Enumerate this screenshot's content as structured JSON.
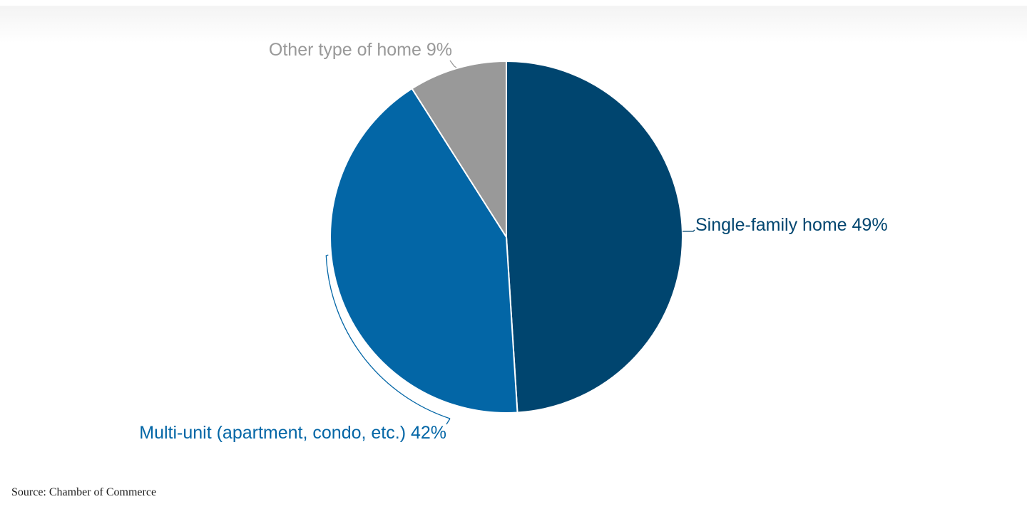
{
  "chart_data": {
    "type": "pie",
    "title": "",
    "slices": [
      {
        "label": "Single-family home 49%",
        "category": "Single-family home",
        "value": 49,
        "color": "#00456f"
      },
      {
        "label": "Multi-unit (apartment, condo, etc.) 42%",
        "category": "Multi-unit (apartment, condo, etc.)",
        "value": 42,
        "color": "#0366a6"
      },
      {
        "label": "Other type of home 9%",
        "category": "Other type of home",
        "value": 9,
        "color": "#999999"
      }
    ],
    "start_angle_deg": 0,
    "direction": "clockwise"
  },
  "source": "Source: Chamber of Commerce"
}
